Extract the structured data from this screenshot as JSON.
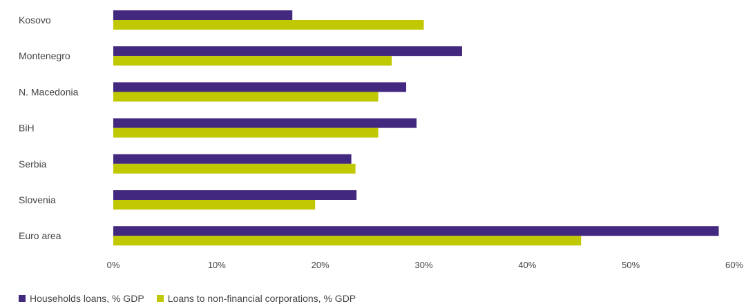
{
  "chart_data": {
    "type": "bar",
    "orientation": "horizontal",
    "categories": [
      "Kosovo",
      "Montenegro",
      "N. Macedonia",
      "BiH",
      "Serbia",
      "Slovenia",
      "Euro area"
    ],
    "series": [
      {
        "name": "Households loans, % GDP",
        "color": "#43287f",
        "values": [
          17.3,
          33.7,
          28.3,
          29.3,
          23.0,
          23.5,
          58.5
        ]
      },
      {
        "name": "Loans to non-financial corporations, % GDP",
        "color": "#bfc800",
        "values": [
          30.0,
          26.9,
          25.6,
          25.6,
          23.4,
          19.5,
          45.2
        ]
      }
    ],
    "xlim": [
      0,
      60
    ],
    "xticks": [
      0,
      10,
      20,
      30,
      40,
      50,
      60
    ],
    "xtick_labels": [
      "0%",
      "10%",
      "20%",
      "30%",
      "40%",
      "50%",
      "60%"
    ],
    "grid": false,
    "legend_position": "bottom-left"
  },
  "legend": {
    "household_label": "Households loans, % GDP",
    "corporate_label": "Loans to non-financial corporations, % GDP"
  }
}
